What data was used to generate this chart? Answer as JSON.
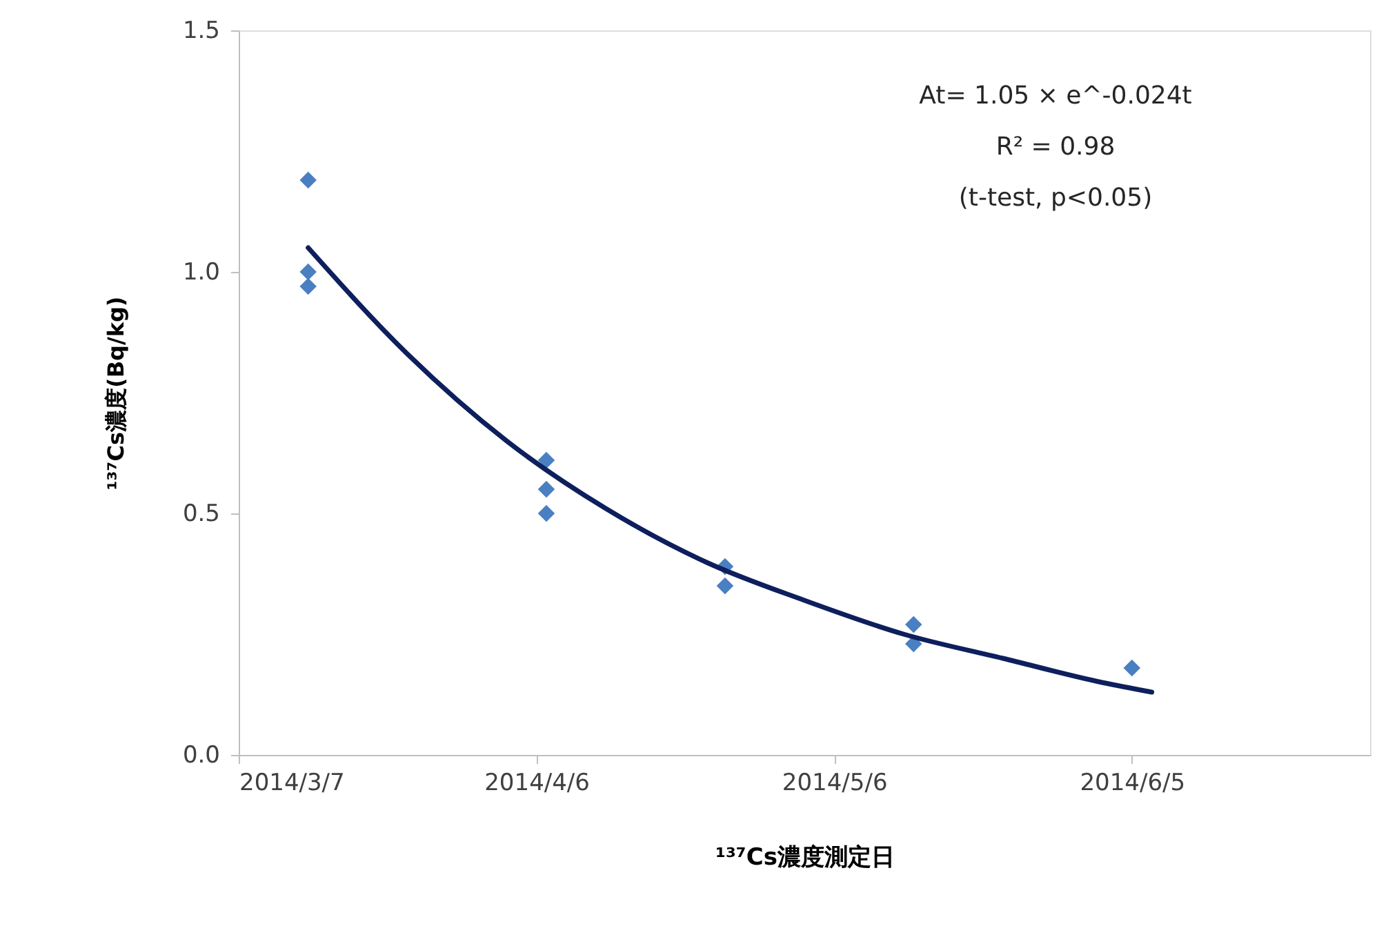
{
  "chart_data": {
    "type": "scatter",
    "xlabel": "¹³⁷Cs濃度測定日",
    "ylabel": "¹³⁷Cs濃度(Bq/kg)",
    "series": [
      {
        "color": "#4a7fc1",
        "marker": "diamond",
        "x": [
          "2014-03-14",
          "2014-03-14",
          "2014-03-14",
          "2014-04-07",
          "2014-04-07",
          "2014-04-07",
          "2014-04-25",
          "2014-04-25",
          "2014-05-14",
          "2014-05-14",
          "2014-06-05"
        ],
        "values": [
          1.19,
          1.0,
          0.97,
          0.61,
          0.55,
          0.5,
          0.39,
          0.35,
          0.27,
          0.23,
          0.18
        ]
      },
      {
        "type": "line",
        "color": "#0d1f5c",
        "marker": "none",
        "line_style": "solid",
        "x": [
          "2014-03-14",
          "2014-03-24",
          "2014-04-03",
          "2014-04-13",
          "2014-04-23",
          "2014-05-03",
          "2014-05-13",
          "2014-05-23",
          "2014-06-02",
          "2014-06-07"
        ],
        "values": [
          1.05,
          0.83,
          0.65,
          0.51,
          0.4,
          0.32,
          0.25,
          0.2,
          0.15,
          0.13
        ]
      }
    ],
    "xlim": [
      "2014-03-07",
      "2014-06-29"
    ],
    "xticks": [
      {
        "value": "2014-03-07",
        "label": "2014/3/7"
      },
      {
        "value": "2014-04-06",
        "label": "2014/4/6"
      },
      {
        "value": "2014-05-06",
        "label": "2014/5/6"
      },
      {
        "value": "2014-06-05",
        "label": "2014/6/5"
      }
    ],
    "ylim": [
      0,
      1.5
    ],
    "yticks": [
      {
        "value": 0,
        "label": "0.0"
      },
      {
        "value": 0.5,
        "label": "0.5"
      },
      {
        "value": 1.0,
        "label": "1.0"
      },
      {
        "value": 1.5,
        "label": "1.5"
      }
    ],
    "grid": false,
    "annotations": [
      "At= 1.05 × e^-0.024t",
      "R² = 0.98",
      "(t-test, p<0.05)"
    ]
  }
}
